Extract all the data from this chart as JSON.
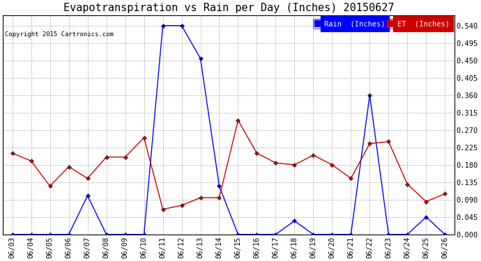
{
  "title": "Evapotranspiration vs Rain per Day (Inches) 20150627",
  "copyright": "Copyright 2015 Cartronics.com",
  "dates": [
    "06/03",
    "06/04",
    "06/05",
    "06/06",
    "06/07",
    "06/08",
    "06/09",
    "06/10",
    "06/11",
    "06/12",
    "06/13",
    "06/14",
    "06/15",
    "06/16",
    "06/17",
    "06/18",
    "06/19",
    "06/20",
    "06/21",
    "06/22",
    "06/23",
    "06/24",
    "06/25",
    "06/26"
  ],
  "rain": [
    0.0,
    0.0,
    0.0,
    0.0,
    0.1,
    0.0,
    0.0,
    0.0,
    0.54,
    0.54,
    0.455,
    0.125,
    0.0,
    0.0,
    0.0,
    0.035,
    0.0,
    0.0,
    0.0,
    0.36,
    0.0,
    0.0,
    0.045,
    0.0
  ],
  "et": [
    0.21,
    0.19,
    0.125,
    0.175,
    0.145,
    0.2,
    0.2,
    0.25,
    0.065,
    0.075,
    0.095,
    0.095,
    0.295,
    0.21,
    0.185,
    0.18,
    0.205,
    0.18,
    0.145,
    0.235,
    0.24,
    0.13,
    0.085,
    0.105
  ],
  "rain_color": "#0000FF",
  "et_color": "#CC0000",
  "ylim_min": 0.0,
  "ylim_max": 0.567,
  "yticks": [
    0.0,
    0.045,
    0.09,
    0.135,
    0.18,
    0.225,
    0.27,
    0.315,
    0.36,
    0.405,
    0.45,
    0.495,
    0.54
  ],
  "grid_color": "#AAAAAA",
  "bg_color": "#FFFFFF",
  "title_fontsize": 11,
  "tick_fontsize": 7.5,
  "copyright_fontsize": 6.5,
  "legend_rain_label": "Rain  (Inches)",
  "legend_et_label": "ET  (Inches)",
  "legend_rain_bg": "#0000FF",
  "legend_et_bg": "#CC0000",
  "marker_size": 3,
  "line_width": 1.0
}
